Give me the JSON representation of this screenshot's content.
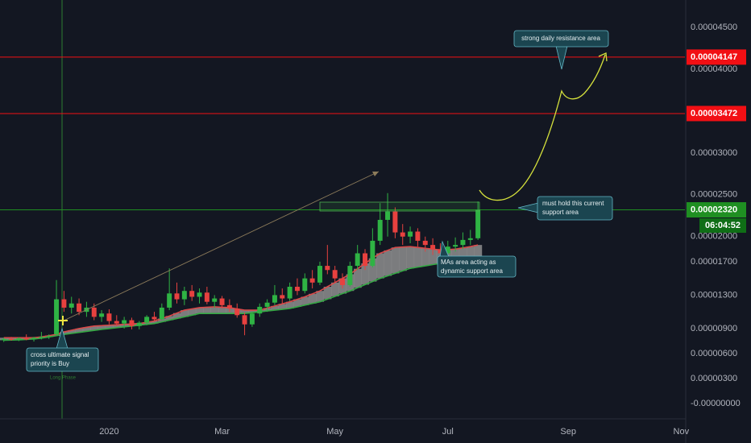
{
  "chart_data": {
    "type": "candlestick",
    "categories": [
      null,
      null,
      null,
      null,
      null,
      null,
      null,
      null,
      null,
      null,
      null,
      null,
      null,
      null,
      "2020",
      null,
      null,
      null,
      null,
      null,
      null,
      null,
      null,
      null,
      null,
      null,
      null,
      null,
      null,
      "Mar",
      null,
      null,
      null,
      null,
      null,
      null,
      null,
      null,
      null,
      null,
      null,
      null,
      null,
      null,
      "May",
      null,
      null,
      null,
      null,
      null,
      null,
      null,
      null,
      null,
      null,
      null,
      null,
      null,
      null,
      "Jul",
      null,
      null,
      null,
      null,
      null,
      null,
      null,
      null,
      null,
      null,
      null,
      null,
      null,
      null,
      null,
      "Sep",
      null,
      null,
      null,
      null,
      null,
      null,
      null,
      null,
      null,
      null,
      null,
      null,
      null,
      null,
      "Nov"
    ],
    "open": [
      7.6e-06,
      7.75e-06,
      7.7e-06,
      7.85e-06,
      7.7e-06,
      7.9e-06,
      8e-06,
      8.3e-06,
      1.25e-05,
      1.15e-05,
      1.2e-05,
      1.1e-05,
      1.15e-05,
      1.04e-05,
      1.08e-05,
      9.9e-06,
      9.6e-06,
      1e-05,
      9.3e-06,
      9.7e-06,
      1.04e-05,
      1.01e-05,
      1.15e-05,
      1.32e-05,
      1.25e-05,
      1.35e-05,
      1.28e-05,
      1.33e-05,
      1.22e-05,
      1.26e-05,
      1.18e-05,
      1.14e-05,
      1.06e-05,
      9.5e-06,
      1.08e-05,
      1.16e-05,
      1.21e-05,
      1.3e-05,
      1.26e-05,
      1.4e-05,
      1.35e-05,
      1.5e-05,
      1.45e-05,
      1.65e-05,
      1.6e-05,
      1.5e-05,
      1.42e-05,
      1.65e-05,
      1.8e-05,
      1.65e-05,
      1.95e-05,
      2.2e-05,
      2.3e-05,
      2.05e-05,
      2e-05,
      2.06e-05,
      1.95e-05,
      1.9e-05,
      1.85e-05,
      1.8e-05,
      1.88e-05,
      1.9e-05,
      1.96e-05,
      1.98e-05,
      null,
      null,
      null,
      null,
      null,
      null,
      null,
      null,
      null,
      null,
      null,
      null,
      null,
      null,
      null,
      null,
      null,
      null,
      null,
      null,
      null,
      null,
      null,
      null,
      null,
      null,
      null
    ],
    "high": [
      7.9e-06,
      8e-06,
      7.95e-06,
      8.3e-06,
      8e-06,
      8.6e-06,
      8.3e-06,
      1.48e-05,
      1.35e-05,
      1.28e-05,
      1.26e-05,
      1.22e-05,
      1.2e-05,
      1.12e-05,
      1.13e-05,
      1.06e-05,
      1.04e-05,
      1.03e-05,
      9.9e-06,
      1.06e-05,
      1.1e-05,
      1.2e-05,
      1.62e-05,
      1.45e-05,
      1.4e-05,
      1.42e-05,
      1.38e-05,
      1.4e-05,
      1.3e-05,
      1.29e-05,
      1.25e-05,
      1.2e-05,
      1.09e-05,
      1.1e-05,
      1.2e-05,
      1.25e-05,
      1.42e-05,
      1.38e-05,
      1.45e-05,
      1.5e-05,
      1.56e-05,
      1.6e-05,
      1.7e-05,
      1.9e-05,
      1.65e-05,
      1.56e-05,
      1.7e-05,
      1.9e-05,
      1.85e-05,
      2.1e-05,
      2.4e-05,
      2.52e-05,
      2.35e-05,
      2.15e-05,
      2.12e-05,
      2.1e-05,
      2e-05,
      1.98e-05,
      1.92e-05,
      1.95e-05,
      1.99e-05,
      2.05e-05,
      2.08e-05,
      2.42e-05,
      null,
      null,
      null,
      null,
      null,
      null,
      null,
      null,
      null,
      null,
      null,
      null,
      null,
      null,
      null,
      null,
      null,
      null,
      null,
      null,
      null,
      null,
      null,
      null,
      null,
      null,
      null
    ],
    "low": [
      7.4e-06,
      7.55e-06,
      7.5e-06,
      7.6e-06,
      7.45e-06,
      7.7e-06,
      7.75e-06,
      8.2e-06,
      1.1e-05,
      1.08e-05,
      1.06e-05,
      1.04e-05,
      1e-05,
      9.8e-06,
      9.5e-06,
      9.3e-06,
      9e-06,
      8.9e-06,
      8.9e-06,
      9.4e-06,
      9.9e-06,
      1e-05,
      1.12e-05,
      1.2e-05,
      1.18e-05,
      1.23e-05,
      1.2e-05,
      1.19e-05,
      1.15e-05,
      1.14e-05,
      1.1e-05,
      1.03e-05,
      8.2e-06,
      9.2e-06,
      1.04e-05,
      1.1e-05,
      1.18e-05,
      1.2e-05,
      1.23e-05,
      1.3e-05,
      1.32e-05,
      1.38e-05,
      1.42e-05,
      1.55e-05,
      1.45e-05,
      1.38e-05,
      1.4e-05,
      1.6e-05,
      1.6e-05,
      1.63e-05,
      1.9e-05,
      2e-05,
      1.98e-05,
      1.9e-05,
      1.92e-05,
      1.88e-05,
      1.82e-05,
      1.78e-05,
      1.65e-05,
      1.76e-05,
      1.82e-05,
      1.85e-05,
      1.9e-05,
      1.96e-05,
      null,
      null,
      null,
      null,
      null,
      null,
      null,
      null,
      null,
      null,
      null,
      null,
      null,
      null,
      null,
      null,
      null,
      null,
      null,
      null,
      null,
      null,
      null,
      null,
      null,
      null,
      null
    ],
    "close": [
      7.75e-06,
      7.7e-06,
      7.85e-06,
      7.7e-06,
      7.9e-06,
      8e-06,
      8.1e-06,
      1.25e-05,
      1.15e-05,
      1.2e-05,
      1.1e-05,
      1.15e-05,
      1.04e-05,
      1.08e-05,
      9.9e-06,
      9.6e-06,
      1e-05,
      9.3e-06,
      9.7e-06,
      1.04e-05,
      1.01e-05,
      1.15e-05,
      1.32e-05,
      1.25e-05,
      1.35e-05,
      1.28e-05,
      1.33e-05,
      1.22e-05,
      1.26e-05,
      1.18e-05,
      1.14e-05,
      1.06e-05,
      9.5e-06,
      1.08e-05,
      1.16e-05,
      1.21e-05,
      1.3e-05,
      1.26e-05,
      1.4e-05,
      1.35e-05,
      1.5e-05,
      1.45e-05,
      1.65e-05,
      1.6e-05,
      1.5e-05,
      1.42e-05,
      1.65e-05,
      1.8e-05,
      1.65e-05,
      1.95e-05,
      2.2e-05,
      2.3e-05,
      2.05e-05,
      2e-05,
      2.06e-05,
      1.95e-05,
      1.9e-05,
      1.85e-05,
      1.8e-05,
      1.88e-05,
      1.9e-05,
      1.96e-05,
      1.98e-05,
      2.32e-05,
      null,
      null,
      null,
      null,
      null,
      null,
      null,
      null,
      null,
      null,
      null,
      null,
      null,
      null,
      null,
      null,
      null,
      null,
      null,
      null,
      null,
      null,
      null,
      null,
      null,
      null,
      null
    ],
    "up_color": "#2fb344",
    "down_color": "#e8413f",
    "moving_averages": [
      {
        "color": "#d94a4a",
        "values": [
          7.9e-06,
          7.9e-06,
          7.9e-06,
          7.9e-06,
          7.9e-06,
          8e-06,
          8.15e-06,
          8.3e-06,
          8.6e-06,
          8.8e-06,
          9e-06,
          9.15e-06,
          9.3e-06,
          9.35e-06,
          9.4e-06,
          9.45e-06,
          9.5e-06,
          9.55e-06,
          9.6e-06,
          9.75e-06,
          9.9e-06,
          1.02e-05,
          1.05e-05,
          1.085e-05,
          1.12e-05,
          1.135e-05,
          1.15e-05,
          1.155e-05,
          1.16e-05,
          1.155e-05,
          1.15e-05,
          1.135e-05,
          1.12e-05,
          1.12e-05,
          1.12e-05,
          1.145e-05,
          1.17e-05,
          1.195e-05,
          1.22e-05,
          1.25e-05,
          1.28e-05,
          1.315e-05,
          1.35e-05,
          1.4e-05,
          1.45e-05,
          1.5e-05,
          1.55e-05,
          1.615e-05,
          1.68e-05,
          1.74e-05,
          1.8e-05,
          1.835e-05,
          1.87e-05,
          1.875e-05,
          1.88e-05,
          1.87e-05,
          1.86e-05,
          1.85e-05,
          1.84e-05,
          1.845e-05,
          1.85e-05,
          1.865e-05,
          1.88e-05,
          1.9e-05,
          null,
          null,
          null,
          null,
          null,
          null,
          null,
          null,
          null,
          null,
          null,
          null,
          null,
          null,
          null,
          null,
          null,
          null,
          null,
          null,
          null,
          null,
          null,
          null,
          null,
          null,
          null
        ]
      },
      {
        "color": "#35a844",
        "values": [
          7.6e-06,
          7.62e-06,
          7.65e-06,
          7.7e-06,
          7.75e-06,
          7.85e-06,
          8e-06,
          8.15e-06,
          8.3e-06,
          8.42e-06,
          8.54e-06,
          8.66e-06,
          8.78e-06,
          8.9e-06,
          9e-06,
          9.1e-06,
          9.2e-06,
          9.3e-06,
          9.4e-06,
          9.5e-06,
          9.6e-06,
          9.8e-06,
          1e-05,
          1.02e-05,
          1.04e-05,
          1.06e-05,
          1.08e-05,
          1.08e-05,
          1.08e-05,
          1.08e-05,
          1.08e-05,
          1.08e-05,
          1.08e-05,
          1.09e-05,
          1.1e-05,
          1.11e-05,
          1.12e-05,
          1.13e-05,
          1.14e-05,
          1.16e-05,
          1.18e-05,
          1.2e-05,
          1.22e-05,
          1.252e-05,
          1.285e-05,
          1.318e-05,
          1.35e-05,
          1.388e-05,
          1.425e-05,
          1.462e-05,
          1.5e-05,
          1.53e-05,
          1.56e-05,
          1.59e-05,
          1.62e-05,
          1.635e-05,
          1.65e-05,
          1.665e-05,
          1.68e-05,
          1.69e-05,
          1.7e-05,
          1.71e-05,
          1.72e-05,
          1.73e-05,
          null,
          null,
          null,
          null,
          null,
          null,
          null,
          null,
          null,
          null,
          null,
          null,
          null,
          null,
          null,
          null,
          null,
          null,
          null,
          null,
          null,
          null,
          null,
          null,
          null,
          null,
          null
        ]
      }
    ],
    "ma_fill": "#8e8e8e",
    "ylim": [
      -1.8e-06,
      4.83e-05
    ],
    "yticks": [
      {
        "value": 4.5e-05,
        "label": "0.00004500"
      },
      {
        "value": 4e-05,
        "label": "0.00004000"
      },
      {
        "value": 3e-05,
        "label": "0.00003000"
      },
      {
        "value": 2.5e-05,
        "label": "0.00002500"
      },
      {
        "value": 2e-05,
        "label": "0.00002000"
      },
      {
        "value": 1.7e-05,
        "label": "0.00001700"
      },
      {
        "value": 1.3e-05,
        "label": "0.00001300"
      },
      {
        "value": 9e-06,
        "label": "0.00000900"
      },
      {
        "value": 6e-06,
        "label": "0.00000600"
      },
      {
        "value": 3e-06,
        "label": "0.00000300"
      },
      {
        "value": 0,
        "label": "-0.00000000"
      }
    ],
    "grid": false,
    "price_lines": [
      {
        "value": 4.147e-05,
        "label": "0.00004147",
        "color": "#f20f14"
      },
      {
        "value": 3.472e-05,
        "label": "0.00003472",
        "color": "#f20f14"
      },
      {
        "value": 2.32e-05,
        "label": "0.00002320",
        "color": "#1f8f22",
        "countdown": "06:04:52",
        "countdown_color": "#0f6e16"
      }
    ],
    "annotations": {
      "resistance": "strong daily resistance area",
      "support": [
        "must hold this current",
        "support area"
      ],
      "mas": [
        "MAs area acting as",
        "dynamic support area"
      ],
      "signal": [
        "cross ultimate signal",
        "priority is Buy"
      ],
      "phase": "Long Phase"
    }
  }
}
